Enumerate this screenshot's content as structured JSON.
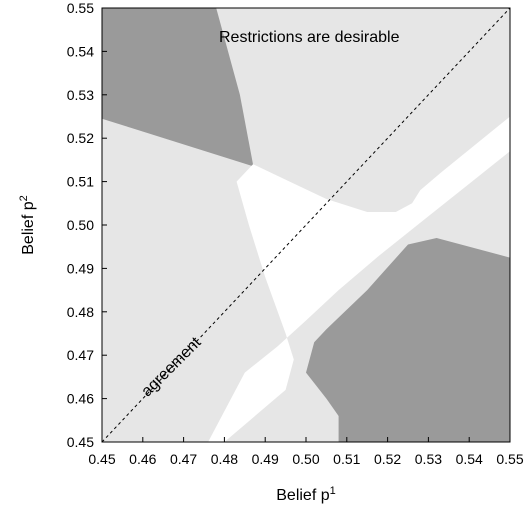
{
  "chart_data": {
    "type": "area",
    "xlabel": "Belief p",
    "xlabel_superscript": "1",
    "ylabel": "Belief p",
    "ylabel_superscript": "2",
    "xlim": [
      0.45,
      0.55
    ],
    "ylim": [
      0.45,
      0.55
    ],
    "x_ticks": [
      "0.45",
      "0.46",
      "0.47",
      "0.48",
      "0.49",
      "0.50",
      "0.51",
      "0.52",
      "0.53",
      "0.54",
      "0.55"
    ],
    "y_ticks": [
      "0.45",
      "0.46",
      "0.47",
      "0.48",
      "0.49",
      "0.50",
      "0.51",
      "0.52",
      "0.53",
      "0.54",
      "0.55"
    ],
    "grid": false,
    "colors": {
      "background_region": "#e6e6e6",
      "dark_region": "#9a9a9a",
      "light_region": "#ffffff"
    },
    "regions": [
      {
        "shade": "dark",
        "polygon": [
          [
            0.45,
            0.5245
          ],
          [
            0.4871,
            0.5135
          ],
          [
            0.4838,
            0.53
          ],
          [
            0.478,
            0.55
          ],
          [
            0.45,
            0.55
          ]
        ]
      },
      {
        "shade": "dark",
        "polygon": [
          [
            0.508,
            0.45
          ],
          [
            0.55,
            0.45
          ],
          [
            0.55,
            0.4925
          ],
          [
            0.532,
            0.497
          ],
          [
            0.525,
            0.4955
          ],
          [
            0.515,
            0.485
          ],
          [
            0.505,
            0.476
          ],
          [
            0.502,
            0.473
          ],
          [
            0.5,
            0.466
          ],
          [
            0.505,
            0.46
          ],
          [
            0.508,
            0.456
          ],
          [
            0.508,
            0.45
          ]
        ]
      },
      {
        "shade": "light",
        "polygon": [
          [
            0.487,
            0.514
          ],
          [
            0.496,
            0.51
          ],
          [
            0.505,
            0.506
          ],
          [
            0.515,
            0.503
          ],
          [
            0.522,
            0.503
          ],
          [
            0.526,
            0.505
          ],
          [
            0.528,
            0.508
          ],
          [
            0.533,
            0.512
          ],
          [
            0.55,
            0.525
          ],
          [
            0.55,
            0.517
          ],
          [
            0.542,
            0.511
          ],
          [
            0.53,
            0.502
          ],
          [
            0.518,
            0.493
          ],
          [
            0.508,
            0.485
          ],
          [
            0.5,
            0.478
          ],
          [
            0.493,
            0.472
          ],
          [
            0.485,
            0.466
          ],
          [
            0.476,
            0.45
          ],
          [
            0.48,
            0.45
          ],
          [
            0.495,
            0.462
          ],
          [
            0.497,
            0.469
          ],
          [
            0.495,
            0.475
          ],
          [
            0.49,
            0.488
          ],
          [
            0.486,
            0.5
          ],
          [
            0.483,
            0.51
          ]
        ]
      }
    ],
    "reference_line": {
      "name": "agreement",
      "from": [
        0.45,
        0.45
      ],
      "to": [
        0.55,
        0.55
      ],
      "style": "dashed"
    },
    "annotations": [
      {
        "text": "Restrictions are desirable",
        "x": 0.5008,
        "y": 0.5435
      },
      {
        "text": "agreement",
        "x": 0.4678,
        "y": 0.4665,
        "rotate": -45
      }
    ]
  }
}
